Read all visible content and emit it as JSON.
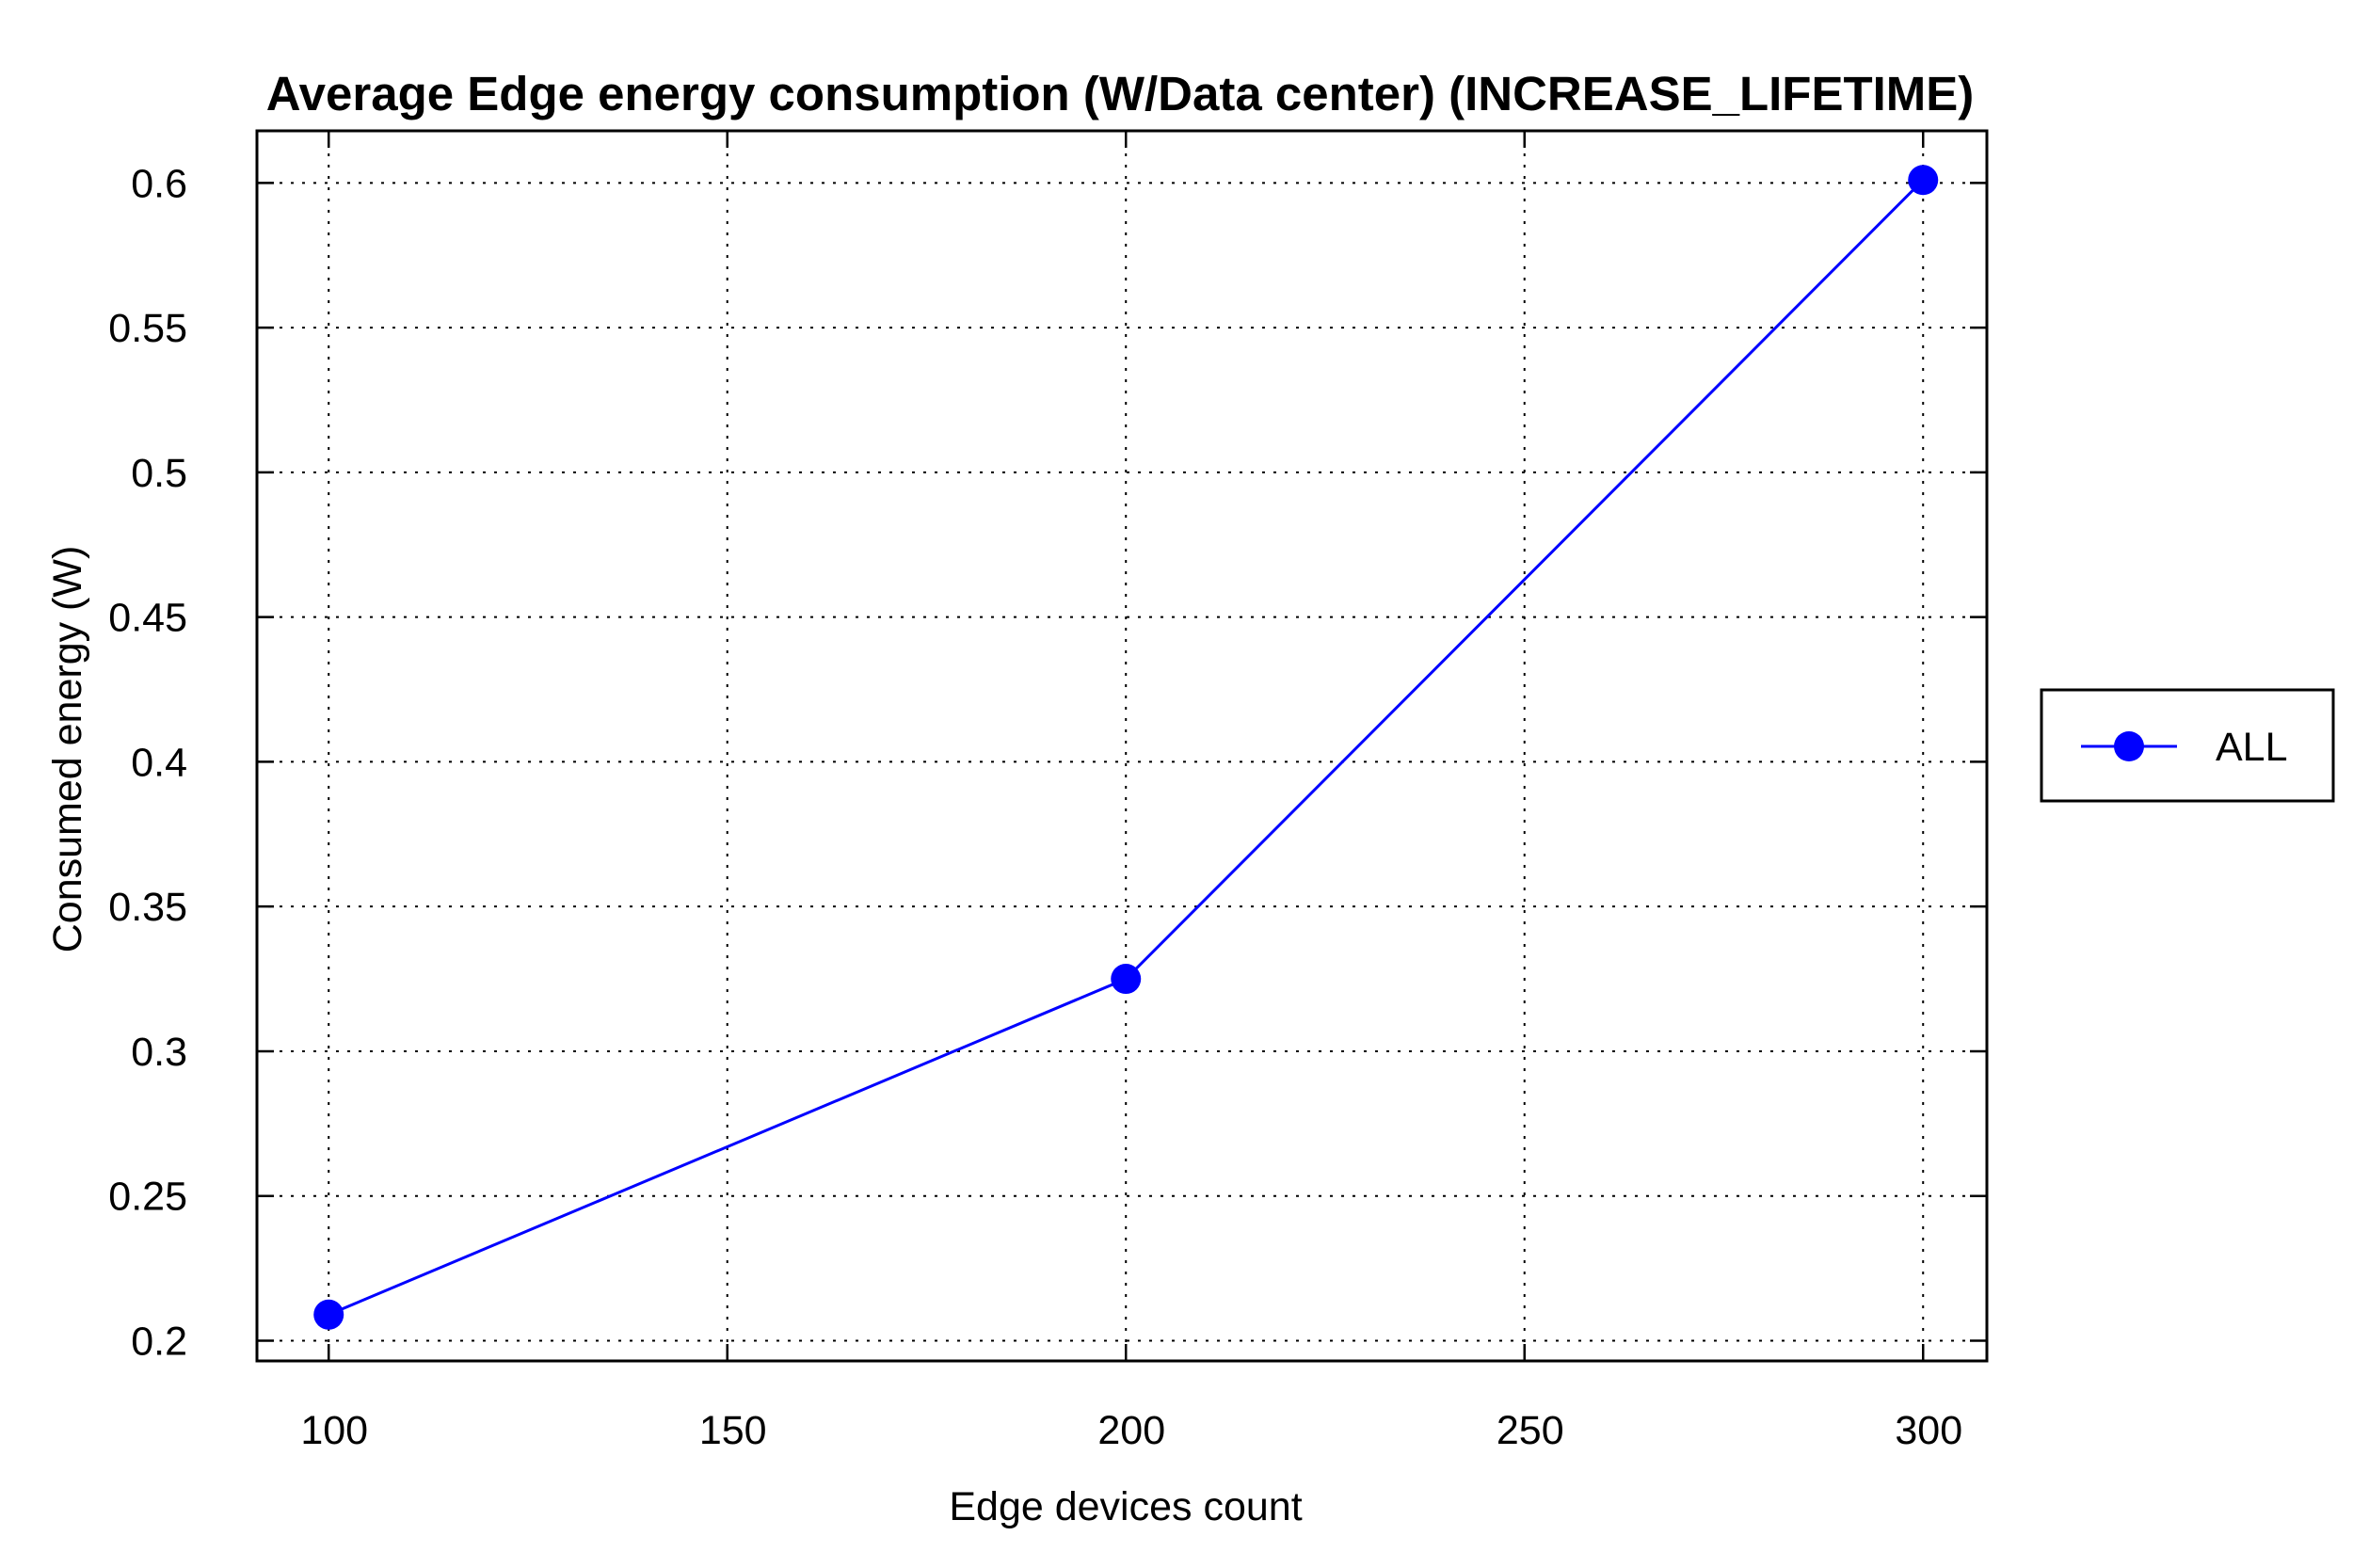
{
  "chart_data": {
    "type": "line",
    "title": "Average Edge energy consumption (W/Data center) (INCREASE_LIFETIME)",
    "xlabel": "Edge devices count",
    "ylabel": "Consumed energy (W)",
    "xlim": [
      91,
      308
    ],
    "ylim": [
      0.193,
      0.618
    ],
    "x_ticks": [
      100,
      150,
      200,
      250,
      300
    ],
    "y_ticks": [
      0.2,
      0.25,
      0.3,
      0.35,
      0.4,
      0.45,
      0.5,
      0.55,
      0.6
    ],
    "x_tick_labels": [
      "100",
      "150",
      "200",
      "250",
      "300"
    ],
    "y_tick_labels": [
      "0.2",
      "0.25",
      "0.3",
      "0.35",
      "0.4",
      "0.45",
      "0.5",
      "0.55",
      "0.6"
    ],
    "grid": true,
    "legend_position": "right",
    "series": [
      {
        "name": "ALL",
        "color": "#0000ff",
        "marker": "circle",
        "x": [
          100,
          200,
          300
        ],
        "y": [
          0.209,
          0.325,
          0.601
        ]
      }
    ]
  }
}
